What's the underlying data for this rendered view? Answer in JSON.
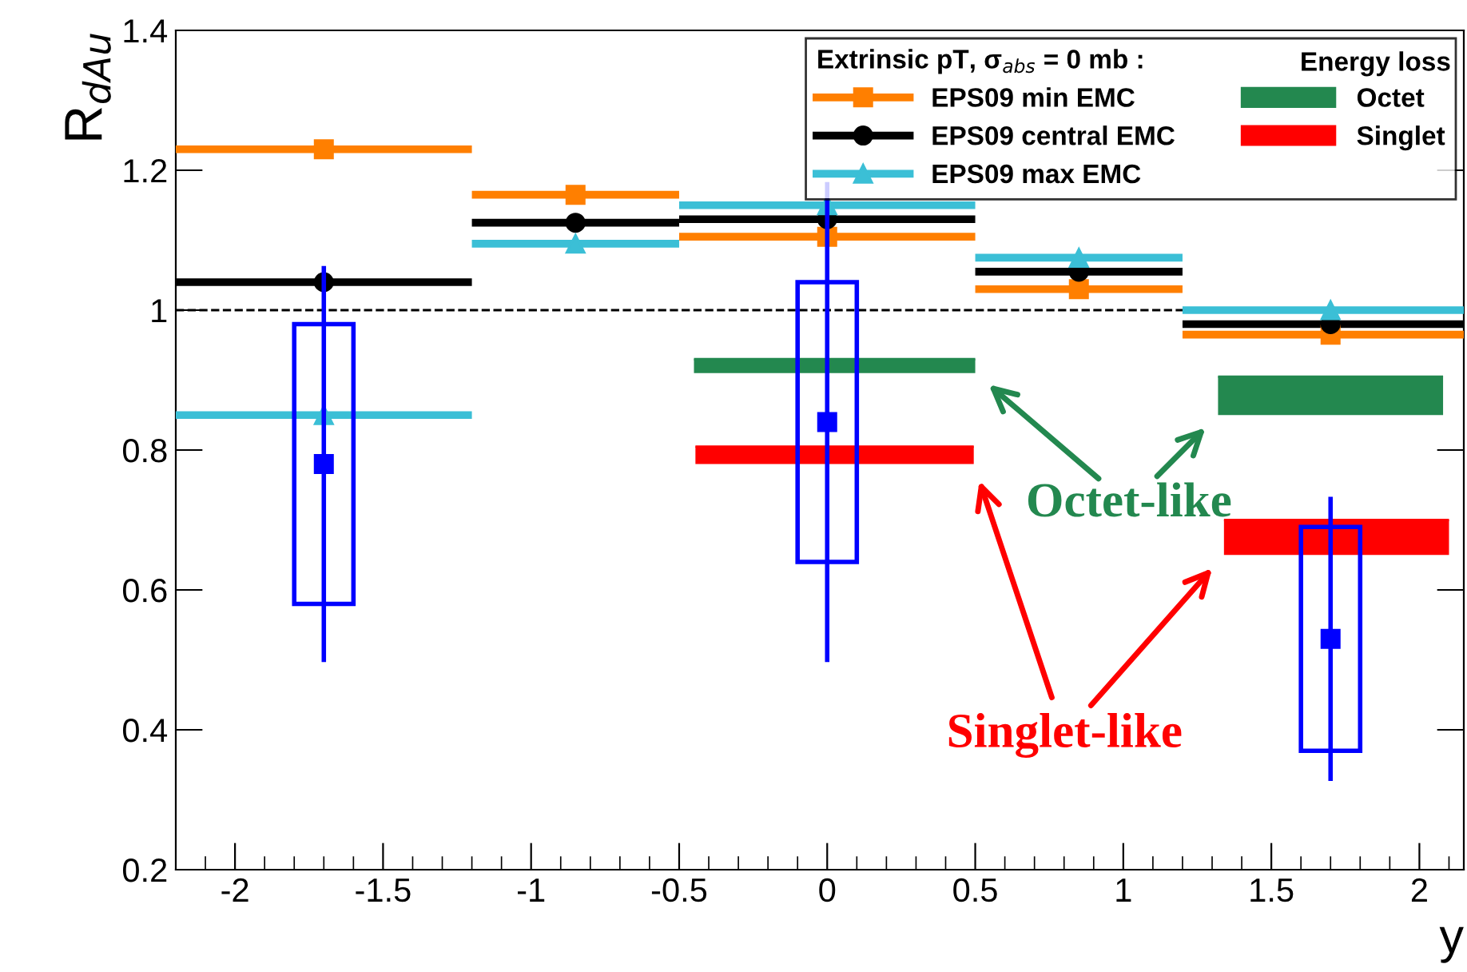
{
  "chart_data": {
    "type": "scatter",
    "xlabel": "y",
    "ylabel": "R$_{dAu}$",
    "legend_title": "Extrinsic pT, σ$_{abs}$ = 0 mb :",
    "xlim": [
      -2.2,
      2.15
    ],
    "ylim": [
      0.2,
      1.4
    ],
    "xticks": [
      -2,
      -1.5,
      -1,
      -0.5,
      0,
      0.5,
      1,
      1.5,
      2
    ],
    "yticks": [
      0.2,
      0.4,
      0.6,
      0.8,
      1,
      1.2,
      1.4
    ],
    "grid": false,
    "legend": "top right",
    "ref_lines": [
      {
        "axis": "y",
        "value": 1,
        "label": null,
        "color": "#000000",
        "line_style": "dashed"
      }
    ],
    "series": [
      {
        "name": "EPS09 min EMC",
        "color": "#ff7f00",
        "marker": "square",
        "x": [
          -1.7,
          -0.85,
          0,
          0.85,
          1.7
        ],
        "values": [
          1.23,
          1.165,
          1.105,
          1.03,
          0.965
        ],
        "xerrors": [
          0.5,
          0.35,
          0.5,
          0.35,
          [
            1.2,
            2.15
          ]
        ]
      },
      {
        "name": "EPS09 central EMC",
        "color": "#000000",
        "marker": "circle",
        "x": [
          -1.7,
          -0.85,
          0,
          0.85,
          1.7
        ],
        "values": [
          1.04,
          1.125,
          1.13,
          1.055,
          0.98
        ],
        "xerrors": [
          0.5,
          0.35,
          0.5,
          0.35,
          [
            1.2,
            2.15
          ]
        ]
      },
      {
        "name": "EPS09 max EMC",
        "color": "#3bbfd6",
        "marker": "triangle",
        "x": [
          -1.7,
          -0.85,
          0,
          0.85,
          1.7
        ],
        "values": [
          0.85,
          1.095,
          1.15,
          1.075,
          1.0
        ],
        "xerrors": [
          0.5,
          0.35,
          0.5,
          0.35,
          [
            1.2,
            2.15
          ]
        ]
      },
      {
        "name": "Octet",
        "type": "bar",
        "color": "#23884f",
        "x": [
          0.025,
          1.7
        ],
        "base": [
          0.91,
          0.85
        ],
        "values": [
          0.02,
          0.055
        ],
        "xerrors": [
          0.475,
          0.38
        ]
      },
      {
        "name": "Singlet",
        "type": "bar",
        "color": "#ff0000",
        "x": [
          0.025,
          1.72
        ],
        "base": [
          0.78,
          0.65
        ],
        "values": [
          0.025,
          0.05
        ],
        "xerrors": [
          0.47,
          0.38
        ]
      },
      {
        "type": "box",
        "color": "#0000ff",
        "marker": "square",
        "x": [
          -1.7,
          0,
          1.7
        ],
        "boxes": [
          {
            "low": 0.5,
            "q1": 0.58,
            "median": 0.78,
            "q3": 0.98,
            "high": 1.06
          },
          {
            "low": 0.5,
            "q1": 0.64,
            "median": 0.84,
            "q3": 1.04,
            "high": 1.18
          },
          {
            "low": 0.33,
            "q1": 0.37,
            "median": 0.53,
            "q3": 0.69,
            "high": 0.73
          }
        ]
      }
    ],
    "annotations": [
      "Energy loss",
      "Octet-like",
      "Singlet-like"
    ]
  }
}
